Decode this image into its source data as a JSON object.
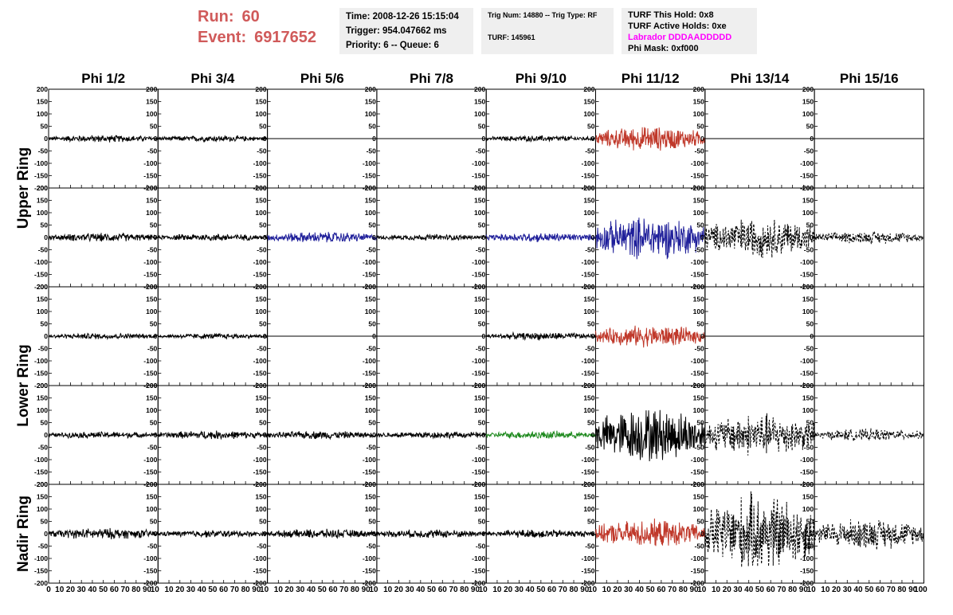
{
  "header": {
    "run_label": "Run:",
    "run_value": "60",
    "event_label": "Event:",
    "event_value": "6917652",
    "time": "Time: 2008-12-26 15:15:04",
    "trigger": "Trigger: 954.047662 ms",
    "priority": "Priority: 6 -- Queue: 6",
    "trig_num": "Trig Num: 14880 -- Trig Type: RF",
    "turf": "TURF: 145961",
    "turf_this_hold": "TURF This Hold: 0x8",
    "turf_active_holds": "TURF Active Holds: 0xe",
    "labrador": "Labrador DDDAADDDDD",
    "phi_mask": "Phi Mask: 0xf000"
  },
  "colors": {
    "run_text": "#d05a5a",
    "labrador_text": "#ff00ff",
    "red": "#c0392b",
    "blue": "#1f1f9a",
    "green": "#1f8a1f",
    "black": "#000000"
  },
  "chart_data": {
    "type": "line",
    "columns": [
      "Phi 1/2",
      "Phi 3/4",
      "Phi 5/6",
      "Phi 7/8",
      "Phi 9/10",
      "Phi 11/12",
      "Phi 13/14",
      "Phi 15/16"
    ],
    "ring_labels": [
      "Upper Ring",
      "Lower Ring",
      "Nadir Ring"
    ],
    "ylim": [
      -200,
      200
    ],
    "yticks": [
      200,
      150,
      100,
      50,
      0,
      -50,
      -100,
      -150,
      -200
    ],
    "xlim": [
      0,
      100
    ],
    "xticks": [
      0,
      10,
      20,
      30,
      40,
      50,
      60,
      70,
      80,
      90,
      100
    ],
    "xtick_labels": [
      [
        "0",
        "10",
        "20",
        "30",
        "40",
        "50",
        "60",
        "70",
        "80",
        "90",
        "10"
      ],
      [
        "",
        "10",
        "20",
        "30",
        "40",
        "50",
        "60",
        "70",
        "80",
        "90",
        "10"
      ],
      [
        "",
        "10",
        "20",
        "30",
        "40",
        "50",
        "60",
        "70",
        "80",
        "90",
        "10"
      ],
      [
        "",
        "10",
        "20",
        "30",
        "40",
        "50",
        "60",
        "70",
        "80",
        "90",
        "10"
      ],
      [
        "",
        "10",
        "20",
        "30",
        "40",
        "50",
        "60",
        "70",
        "80",
        "90",
        "10"
      ],
      [
        "",
        "10",
        "20",
        "30",
        "40",
        "50",
        "60",
        "70",
        "80",
        "90",
        "10"
      ],
      [
        "",
        "10",
        "20",
        "30",
        "40",
        "50",
        "60",
        "70",
        "80",
        "90",
        "10"
      ],
      [
        "",
        "10",
        "20",
        "30",
        "40",
        "50",
        "60",
        "70",
        "80",
        "90",
        "100"
      ]
    ],
    "channels": [
      [
        {
          "amp": 12,
          "color": "black",
          "style": "solid"
        },
        {
          "amp": 10,
          "color": "black",
          "style": "solid"
        },
        {
          "amp": 0,
          "color": "black",
          "style": "solid"
        },
        {
          "amp": 0,
          "color": "black",
          "style": "solid"
        },
        {
          "amp": 10,
          "color": "black",
          "style": "solid"
        },
        {
          "amp": 40,
          "color": "red",
          "style": "solid"
        },
        {
          "amp": 0,
          "color": "black",
          "style": "solid"
        },
        {
          "amp": 0,
          "color": "black",
          "style": "solid"
        }
      ],
      [
        {
          "amp": 14,
          "color": "black",
          "style": "solid"
        },
        {
          "amp": 12,
          "color": "black",
          "style": "solid"
        },
        {
          "amp": 18,
          "color": "blue",
          "style": "solid"
        },
        {
          "amp": 10,
          "color": "black",
          "style": "solid"
        },
        {
          "amp": 15,
          "color": "blue",
          "style": "solid"
        },
        {
          "amp": 70,
          "color": "blue",
          "style": "solid"
        },
        {
          "amp": 65,
          "color": "black",
          "style": "dashed"
        },
        {
          "amp": 20,
          "color": "black",
          "style": "dashed"
        }
      ],
      [
        {
          "amp": 10,
          "color": "black",
          "style": "solid"
        },
        {
          "amp": 9,
          "color": "black",
          "style": "solid"
        },
        {
          "amp": 0,
          "color": "black",
          "style": "solid"
        },
        {
          "amp": 0,
          "color": "black",
          "style": "solid"
        },
        {
          "amp": 12,
          "color": "black",
          "style": "solid"
        },
        {
          "amp": 35,
          "color": "red",
          "style": "solid"
        },
        {
          "amp": 0,
          "color": "black",
          "style": "solid"
        },
        {
          "amp": 0,
          "color": "black",
          "style": "solid"
        }
      ],
      [
        {
          "amp": 11,
          "color": "black",
          "style": "solid"
        },
        {
          "amp": 14,
          "color": "black",
          "style": "solid"
        },
        {
          "amp": 13,
          "color": "black",
          "style": "solid"
        },
        {
          "amp": 12,
          "color": "black",
          "style": "solid"
        },
        {
          "amp": 13,
          "color": "green",
          "style": "solid"
        },
        {
          "amp": 90,
          "color": "black",
          "style": "solid"
        },
        {
          "amp": 70,
          "color": "black",
          "style": "dashed"
        },
        {
          "amp": 20,
          "color": "black",
          "style": "dashed"
        }
      ],
      [
        {
          "amp": 18,
          "color": "black",
          "style": "solid"
        },
        {
          "amp": 12,
          "color": "black",
          "style": "solid"
        },
        {
          "amp": 15,
          "color": "black",
          "style": "solid"
        },
        {
          "amp": 14,
          "color": "black",
          "style": "solid"
        },
        {
          "amp": 14,
          "color": "black",
          "style": "solid"
        },
        {
          "amp": 45,
          "color": "red",
          "style": "solid"
        },
        {
          "amp": 130,
          "color": "black",
          "style": "dashed"
        },
        {
          "amp": 50,
          "color": "black",
          "style": "dashed"
        }
      ]
    ]
  }
}
